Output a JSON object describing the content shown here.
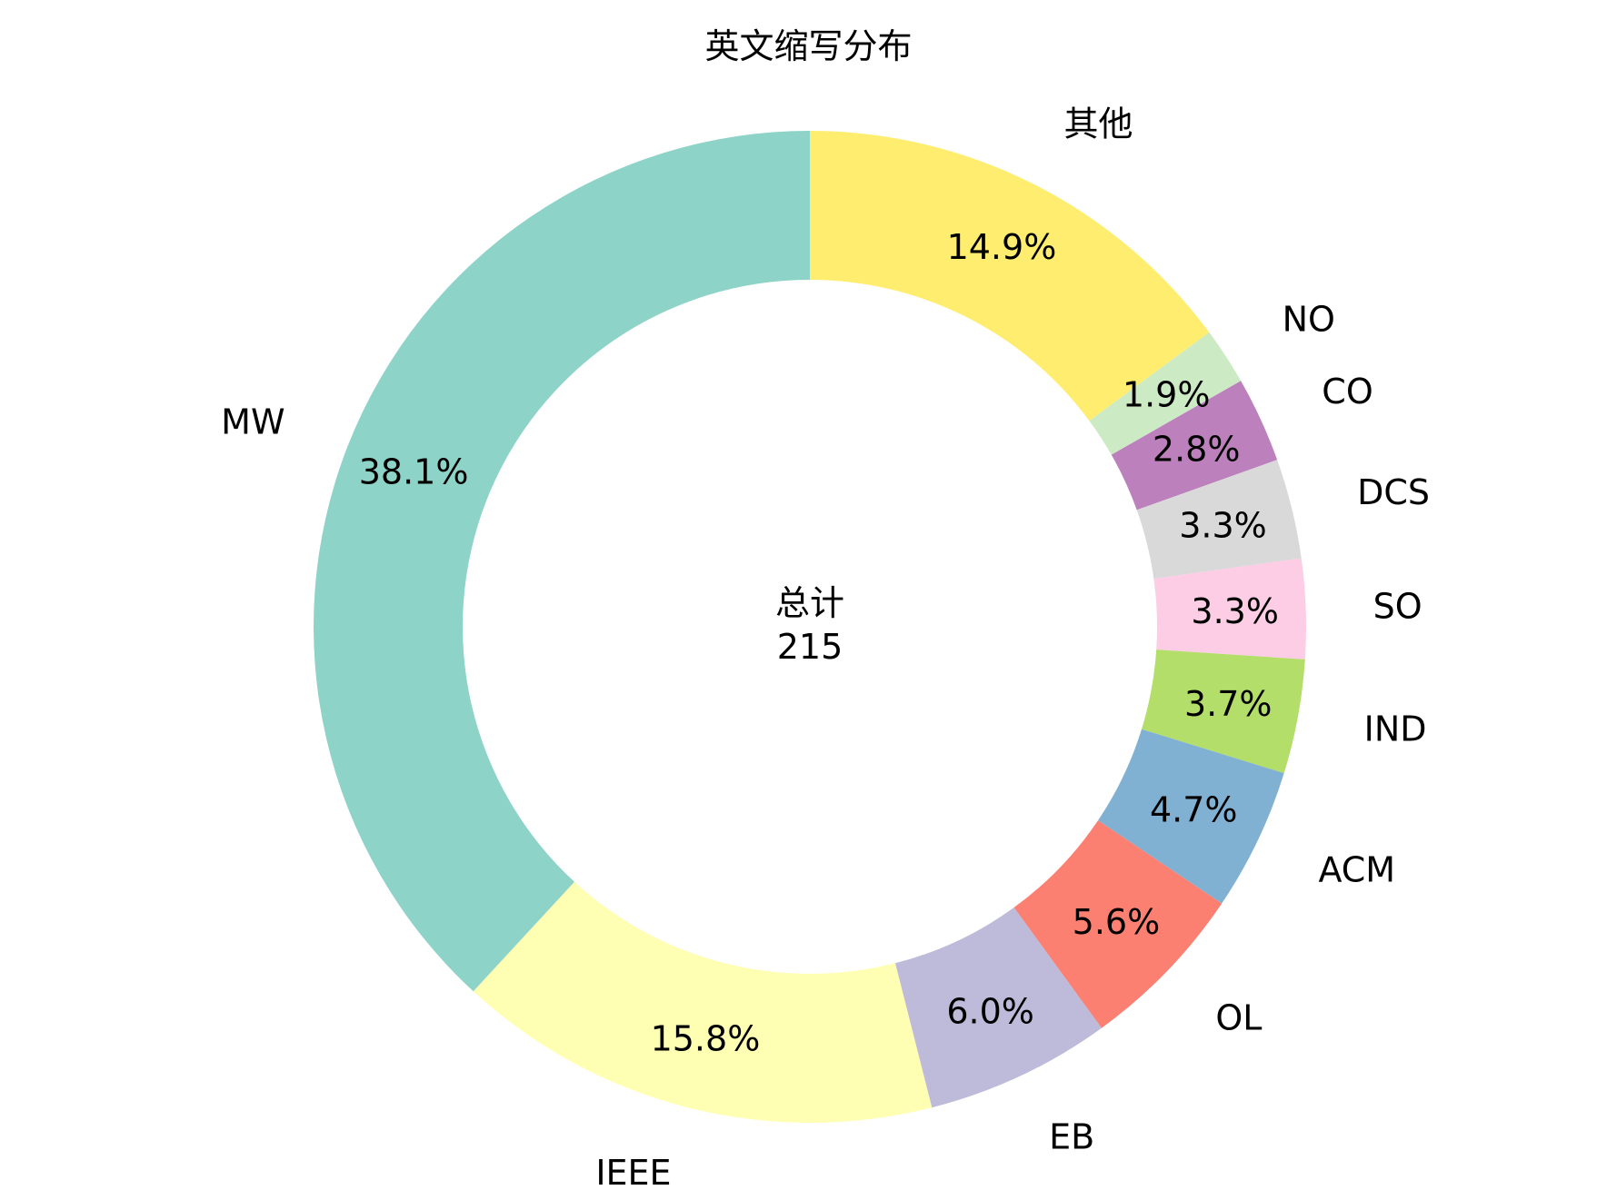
{
  "chart_data": {
    "type": "pie",
    "title": "英文缩写分布",
    "donut": true,
    "start_angle_deg": 90,
    "direction": "clockwise",
    "center_label": "总计",
    "center_value": "215",
    "slices": [
      {
        "label": "其他",
        "value": 32,
        "percent_label": "14.9%",
        "color": "#ffed6f"
      },
      {
        "label": "NO",
        "value": 4,
        "percent_label": "1.9%",
        "color": "#ccebc5"
      },
      {
        "label": "CO",
        "value": 6,
        "percent_label": "2.8%",
        "color": "#bc80bd"
      },
      {
        "label": "DCS",
        "value": 7,
        "percent_label": "3.3%",
        "color": "#d9d9d9"
      },
      {
        "label": "SO",
        "value": 7,
        "percent_label": "3.3%",
        "color": "#fccde5"
      },
      {
        "label": "IND",
        "value": 8,
        "percent_label": "3.7%",
        "color": "#b3de69"
      },
      {
        "label": "ACM",
        "value": 10,
        "percent_label": "4.7%",
        "color": "#80b1d3"
      },
      {
        "label": "OL",
        "value": 12,
        "percent_label": "5.6%",
        "color": "#fb8072"
      },
      {
        "label": "EB",
        "value": 13,
        "percent_label": "6.0%",
        "color": "#bebada"
      },
      {
        "label": "IEEE",
        "value": 34,
        "percent_label": "15.8%",
        "color": "#ffffb3"
      },
      {
        "label": "MW",
        "value": 82,
        "percent_label": "38.1%",
        "color": "#8dd3c7"
      }
    ]
  }
}
